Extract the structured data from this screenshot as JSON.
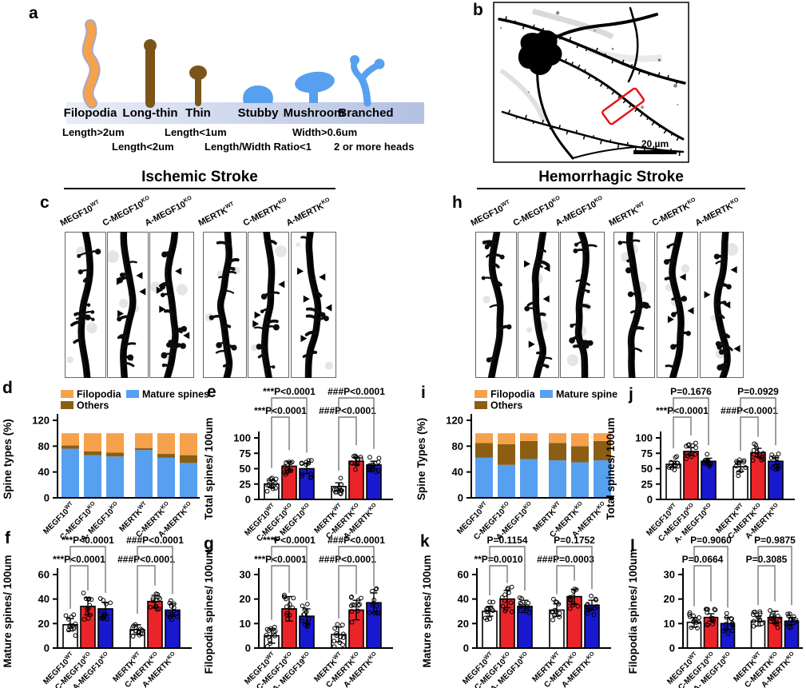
{
  "figure": {
    "panel_letters": [
      "a",
      "b",
      "c",
      "d",
      "e",
      "f",
      "g",
      "h",
      "i",
      "j",
      "k",
      "l"
    ],
    "panel_a": {
      "type_labels": [
        "Filopodia",
        "Long-thin",
        "Thin",
        "Stubby",
        "Mushroom",
        "Branched"
      ],
      "criteria_row1": [
        "Length>2um",
        "Length<1um",
        "Width>0.6um"
      ],
      "criteria_row2": [
        "Length<2um",
        "Length/Width Ratio<1",
        "2 or more heads"
      ],
      "colors": {
        "filopodia": "#F6A14B",
        "thin_types": "#7B5518",
        "mature_types": "#57A0F0"
      }
    },
    "panel_b": {
      "scale_bar_label": "20 µm"
    },
    "panel_c": {
      "title": "Ischemic Stroke",
      "column_labels": [
        {
          "base": "MEGF10",
          "sup": "WT"
        },
        {
          "base": "C-MEGF10",
          "sup": "KO"
        },
        {
          "base": "A-MEGF10",
          "sup": "KO"
        },
        {
          "base": "MERTK",
          "sup": "WT"
        },
        {
          "base": "C-MERTK",
          "sup": "KO"
        },
        {
          "base": "A-MERTK",
          "sup": "KO"
        }
      ]
    },
    "panel_h": {
      "title": "Hemorrhagic Stroke",
      "column_labels": [
        {
          "base": "MEGF10",
          "sup": "WT"
        },
        {
          "base": "C-MEGF10",
          "sup": "KO"
        },
        {
          "base": "A-MEGF10",
          "sup": "KO"
        },
        {
          "base": "MERTK",
          "sup": "WT"
        },
        {
          "base": "C-MERTK",
          "sup": "KO"
        },
        {
          "base": "A-MERTK",
          "sup": "KO"
        }
      ]
    }
  },
  "chart_data": [
    {
      "id": "d",
      "type": "stacked_bar",
      "ylabel": "Spine types (%)",
      "ylim": [
        0,
        120
      ],
      "yticks": [
        0,
        40,
        80,
        120
      ],
      "legend": [
        {
          "label": "Filopodia",
          "color": "#F6A14B"
        },
        {
          "label": "Mature spines",
          "color": "#57A0F0"
        },
        {
          "label": "Others",
          "color": "#8B5E14"
        }
      ],
      "categories": [
        {
          "base": "MEGF10",
          "sup": "WT"
        },
        {
          "base": "C-MEGF10",
          "sup": "KO"
        },
        {
          "base": "A- MEGF10",
          "sup": "KO"
        },
        {
          "base": "MERTK",
          "sup": "WT"
        },
        {
          "base": "C-MERTK",
          "sup": "KO"
        },
        {
          "base": "A-MERTK",
          "sup": "KO"
        }
      ],
      "series": [
        {
          "name": "Mature spines",
          "color": "#57A0F0",
          "values": [
            76,
            66,
            64,
            74,
            62,
            54
          ]
        },
        {
          "name": "Others",
          "color": "#8B5E14",
          "values": [
            5,
            6,
            6,
            3,
            6,
            12
          ]
        },
        {
          "name": "Filopodia",
          "color": "#F6A14B",
          "values": [
            19,
            28,
            30,
            23,
            32,
            34
          ]
        }
      ]
    },
    {
      "id": "e",
      "type": "bar",
      "ylabel": "Total spines/ 100um",
      "ylim": [
        0,
        100
      ],
      "yticks": [
        0,
        25,
        50,
        75,
        100
      ],
      "categories": [
        {
          "base": "MEGF10",
          "sup": "WT"
        },
        {
          "base": "C-MEGF10",
          "sup": "KO"
        },
        {
          "base": "A- MEGF10",
          "sup": "KO"
        },
        {
          "base": "MERTK",
          "sup": "WT"
        },
        {
          "base": "C-MERTK",
          "sup": "KO"
        },
        {
          "base": "A-MERTK",
          "sup": "KO"
        }
      ],
      "values": [
        25,
        54,
        50,
        21,
        62,
        56
      ],
      "errors": [
        6,
        7,
        8,
        6,
        6,
        6
      ],
      "bar_colors": [
        "#FFFFFF",
        "#EA2428",
        "#1818CF",
        "#FFFFFF",
        "#EA2428",
        "#1818CF"
      ],
      "annotations": [
        {
          "text": "***P<0.0001",
          "from": 0,
          "to": 1,
          "level": "lower"
        },
        {
          "text": "***P<0.0001",
          "from": 0,
          "to": 2,
          "level": "upper"
        },
        {
          "text": "###P<0.0001",
          "from": 3,
          "to": 4,
          "level": "lower"
        },
        {
          "text": "###P<0.0001",
          "from": 3,
          "to": 5,
          "level": "upper"
        }
      ]
    },
    {
      "id": "f",
      "type": "bar",
      "ylabel": "Mature spines/ 100um",
      "ylim": [
        0,
        60
      ],
      "yticks": [
        0,
        20,
        40,
        60
      ],
      "categories": [
        {
          "base": "MEGF10",
          "sup": "WT"
        },
        {
          "base": "C-MEGF10",
          "sup": "KO"
        },
        {
          "base": "A-MEGF10",
          "sup": "KO"
        },
        {
          "base": "MERTK",
          "sup": "WT"
        },
        {
          "base": "C-MERTK",
          "sup": "KO"
        },
        {
          "base": "A-MERTK",
          "sup": "KO"
        }
      ],
      "values": [
        19,
        34,
        32,
        15,
        38,
        31
      ],
      "errors": [
        5,
        7,
        5,
        4,
        5,
        5
      ],
      "bar_colors": [
        "#FFFFFF",
        "#EA2428",
        "#1818CF",
        "#FFFFFF",
        "#EA2428",
        "#1818CF"
      ],
      "annotations": [
        {
          "text": "***P<0.0001",
          "from": 0,
          "to": 1,
          "level": "lower"
        },
        {
          "text": "***P<0.0001",
          "from": 0,
          "to": 2,
          "level": "upper"
        },
        {
          "text": "###P<0.0001",
          "from": 3,
          "to": 4,
          "level": "lower"
        },
        {
          "text": "###P<0.0001",
          "from": 3,
          "to": 5,
          "level": "upper"
        }
      ]
    },
    {
      "id": "g",
      "type": "bar",
      "ylabel": "Filopodia spines/ 100um",
      "ylim": [
        0,
        30
      ],
      "yticks": [
        0,
        10,
        20,
        30
      ],
      "categories": [
        {
          "base": "MEGF10",
          "sup": "WT"
        },
        {
          "base": "C-MEGF10",
          "sup": "KO"
        },
        {
          "base": "A- MEGF19",
          "sup": "KO"
        },
        {
          "base": "MERTK",
          "sup": "WT"
        },
        {
          "base": "C-MERTK",
          "sup": "KO"
        },
        {
          "base": "A-MERTK",
          "sup": "KO"
        }
      ],
      "values": [
        5,
        16,
        13,
        5.5,
        15.5,
        18.5
      ],
      "errors": [
        3,
        5,
        3,
        3,
        4,
        4
      ],
      "bar_colors": [
        "#FFFFFF",
        "#EA2428",
        "#1818CF",
        "#FFFFFF",
        "#EA2428",
        "#1818CF"
      ],
      "annotations": [
        {
          "text": "***P<0.0001",
          "from": 0,
          "to": 1,
          "level": "lower"
        },
        {
          "text": "***P<0.0001",
          "from": 0,
          "to": 2,
          "level": "upper"
        },
        {
          "text": "###P<0.0001",
          "from": 3,
          "to": 4,
          "level": "lower"
        },
        {
          "text": "###P<0.0001",
          "from": 3,
          "to": 5,
          "level": "upper"
        }
      ]
    },
    {
      "id": "i",
      "type": "stacked_bar",
      "ylabel": "Spine Types (%)",
      "ylim": [
        0,
        120
      ],
      "yticks": [
        0,
        40,
        80,
        120
      ],
      "legend": [
        {
          "label": "Filopodia",
          "color": "#F6A14B"
        },
        {
          "label": "Mature spine",
          "color": "#57A0F0"
        },
        {
          "label": "Others",
          "color": "#8B5E14"
        }
      ],
      "categories": [
        {
          "base": "MEGF10",
          "sup": "WT"
        },
        {
          "base": "C-MEGF10",
          "sup": "KO"
        },
        {
          "base": "A-MEGF10",
          "sup": "KO"
        },
        {
          "base": "MERTK",
          "sup": "WT"
        },
        {
          "base": "C-MERTK",
          "sup": "KO"
        },
        {
          "base": "A-MERTK",
          "sup": "KO"
        }
      ],
      "series": [
        {
          "name": "Mature spine",
          "color": "#57A0F0",
          "values": [
            62,
            51,
            60,
            58,
            55,
            58
          ]
        },
        {
          "name": "Others",
          "color": "#8B5E14",
          "values": [
            23,
            32,
            28,
            27,
            25,
            30
          ]
        },
        {
          "name": "Filopodia",
          "color": "#F6A14B",
          "values": [
            15,
            17,
            12,
            15,
            20,
            12
          ]
        }
      ]
    },
    {
      "id": "j",
      "type": "bar",
      "ylabel": "Total spines/ 100um",
      "ylim": [
        0,
        100
      ],
      "yticks": [
        0,
        25,
        50,
        75,
        100
      ],
      "categories": [
        {
          "base": "MEGF10",
          "sup": "WT"
        },
        {
          "base": "C-MEGF10",
          "sup": "KO"
        },
        {
          "base": "A- MEGF10",
          "sup": "KO"
        },
        {
          "base": "MERTK",
          "sup": "WT"
        },
        {
          "base": "C-MERTK",
          "sup": "KO"
        },
        {
          "base": "A-MERTK",
          "sup": "KO"
        }
      ],
      "values": [
        57,
        78,
        62,
        53,
        76,
        62
      ],
      "errors": [
        5,
        6,
        5,
        8,
        7,
        6
      ],
      "bar_colors": [
        "#FFFFFF",
        "#EA2428",
        "#1818CF",
        "#FFFFFF",
        "#EA2428",
        "#1818CF"
      ],
      "annotations": [
        {
          "text": "***P<0.0001",
          "from": 0,
          "to": 1,
          "level": "lower"
        },
        {
          "text": "P=0.1676",
          "from": 0,
          "to": 2,
          "level": "upper"
        },
        {
          "text": "###P<0.0001",
          "from": 3,
          "to": 4,
          "level": "lower"
        },
        {
          "text": "P=0.0929",
          "from": 3,
          "to": 5,
          "level": "upper"
        }
      ]
    },
    {
      "id": "k",
      "type": "bar",
      "ylabel": "Mature spines/ 100um",
      "ylim": [
        0,
        60
      ],
      "yticks": [
        0,
        20,
        40,
        60
      ],
      "categories": [
        {
          "base": "MEGF10",
          "sup": "WT"
        },
        {
          "base": "C-MEGF10",
          "sup": "KO"
        },
        {
          "base": "A- MEGF10",
          "sup": "KO"
        },
        {
          "base": "MERTK",
          "sup": "WT"
        },
        {
          "base": "C-MERTK",
          "sup": "KO"
        },
        {
          "base": "A-MERTK",
          "sup": "KO"
        }
      ],
      "values": [
        30,
        40,
        34,
        31,
        42,
        35
      ],
      "errors": [
        4,
        7,
        5,
        5,
        6,
        4
      ],
      "bar_colors": [
        "#FFFFFF",
        "#EA2428",
        "#1818CF",
        "#FFFFFF",
        "#EA2428",
        "#1818CF"
      ],
      "annotations": [
        {
          "text": "**P=0.0010",
          "from": 0,
          "to": 1,
          "level": "lower"
        },
        {
          "text": "P=0.1154",
          "from": 0,
          "to": 2,
          "level": "upper"
        },
        {
          "text": "###P=0.0003",
          "from": 3,
          "to": 4,
          "level": "lower"
        },
        {
          "text": "P=0.1752",
          "from": 3,
          "to": 5,
          "level": "upper"
        }
      ]
    },
    {
      "id": "l",
      "type": "bar",
      "ylabel": "Filopodia spines/ 100um",
      "ylim": [
        0,
        30
      ],
      "yticks": [
        0,
        10,
        20,
        30
      ],
      "categories": [
        {
          "base": "MEGF10",
          "sup": "WT"
        },
        {
          "base": "C-MEGF10",
          "sup": "KO"
        },
        {
          "base": "A- MEGF10",
          "sup": "KO"
        },
        {
          "base": "MERTK",
          "sup": "WT"
        },
        {
          "base": "C-MERTK",
          "sup": "KO"
        },
        {
          "base": "A-MERTK",
          "sup": "KO"
        }
      ],
      "values": [
        10.5,
        12.5,
        10,
        11,
        12.5,
        11
      ],
      "errors": [
        2,
        1.5,
        2.5,
        2,
        2.5,
        1.5
      ],
      "bar_colors": [
        "#FFFFFF",
        "#EA2428",
        "#1818CF",
        "#FFFFFF",
        "#EA2428",
        "#1818CF"
      ],
      "annotations": [
        {
          "text": "P=0.0664",
          "from": 0,
          "to": 1,
          "level": "lower"
        },
        {
          "text": "P=0.9060",
          "from": 0,
          "to": 2,
          "level": "upper"
        },
        {
          "text": "P=0.3085",
          "from": 3,
          "to": 4,
          "level": "lower"
        },
        {
          "text": "P=0.9875",
          "from": 3,
          "to": 5,
          "level": "upper"
        }
      ]
    }
  ]
}
